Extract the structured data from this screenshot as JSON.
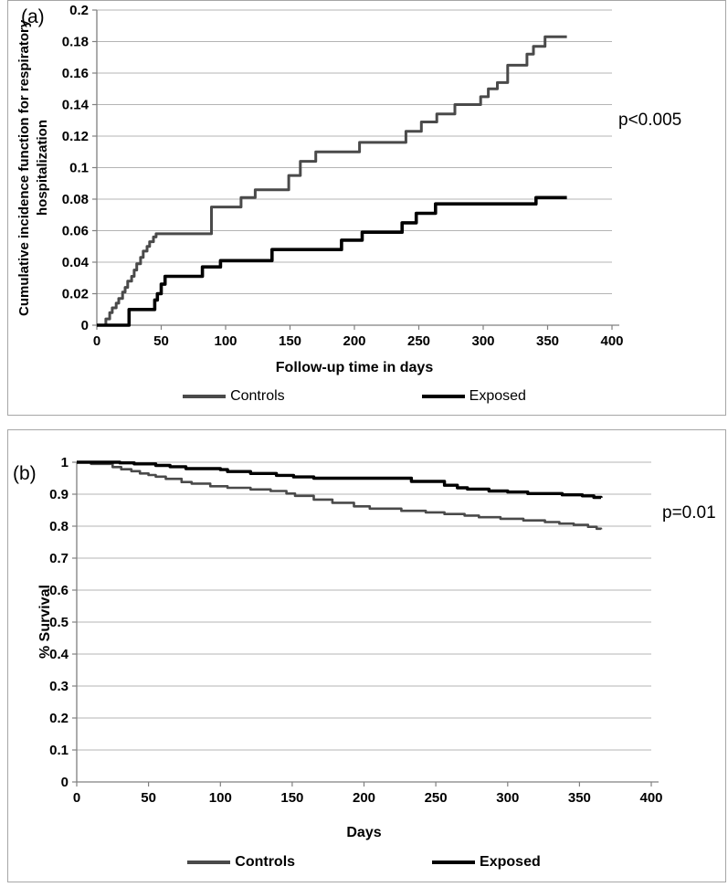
{
  "figure": {
    "panels": [
      {
        "label": "(a)",
        "ylabel_line1": "Cumulative incidence function for respiratory",
        "ylabel_line2": "hospitalization"
      },
      {
        "label": "(b)",
        "ylabel_line1": "% Survival"
      }
    ]
  },
  "chart_data": [
    {
      "type": "line",
      "line_style": "step-after",
      "title": "",
      "xlabel": "Follow-up time in days",
      "ylabel": "Cumulative incidence function for respiratory hospitalization",
      "annotation": "p<0.005",
      "xlim": [
        0,
        400
      ],
      "ylim": [
        0,
        0.2
      ],
      "xticks": [
        0,
        50,
        100,
        150,
        200,
        250,
        300,
        350,
        400
      ],
      "ytick_values": [
        0,
        0.02,
        0.04,
        0.06,
        0.08,
        0.1,
        0.12,
        0.14,
        0.16,
        0.18,
        0.2
      ],
      "ytick_labels": [
        "0",
        "0.02",
        "0.04",
        "0.06",
        "0.08",
        "0.1",
        "0.12",
        "0.14",
        "0.16",
        "0.18",
        "0.2"
      ],
      "grid": "horizontal",
      "legend_position": "bottom",
      "series": [
        {
          "name": "Controls",
          "color": "#4a4a4a",
          "stroke_width": 3,
          "points": [
            [
              0,
              0
            ],
            [
              7,
              0.004
            ],
            [
              10,
              0.008
            ],
            [
              12,
              0.011
            ],
            [
              15,
              0.014
            ],
            [
              17,
              0.017
            ],
            [
              20,
              0.021
            ],
            [
              22,
              0.024
            ],
            [
              24,
              0.028
            ],
            [
              27,
              0.031
            ],
            [
              29,
              0.035
            ],
            [
              31,
              0.039
            ],
            [
              34,
              0.043
            ],
            [
              36,
              0.047
            ],
            [
              39,
              0.05
            ],
            [
              41,
              0.053
            ],
            [
              44,
              0.056
            ],
            [
              46,
              0.058
            ],
            [
              89,
              0.075
            ],
            [
              112,
              0.081
            ],
            [
              123,
              0.086
            ],
            [
              149,
              0.095
            ],
            [
              158,
              0.104
            ],
            [
              170,
              0.11
            ],
            [
              204,
              0.116
            ],
            [
              240,
              0.123
            ],
            [
              252,
              0.129
            ],
            [
              264,
              0.134
            ],
            [
              278,
              0.14
            ],
            [
              298,
              0.145
            ],
            [
              304,
              0.15
            ],
            [
              311,
              0.154
            ],
            [
              319,
              0.165
            ],
            [
              334,
              0.172
            ],
            [
              339,
              0.177
            ],
            [
              348,
              0.183
            ],
            [
              365,
              0.183
            ]
          ]
        },
        {
          "name": "Exposed",
          "color": "#000000",
          "stroke_width": 3.6,
          "points": [
            [
              0,
              0
            ],
            [
              25,
              0.01
            ],
            [
              45,
              0.016
            ],
            [
              47,
              0.02
            ],
            [
              50,
              0.026
            ],
            [
              53,
              0.031
            ],
            [
              82,
              0.037
            ],
            [
              96,
              0.041
            ],
            [
              136,
              0.048
            ],
            [
              190,
              0.054
            ],
            [
              206,
              0.059
            ],
            [
              237,
              0.065
            ],
            [
              248,
              0.071
            ],
            [
              263,
              0.077
            ],
            [
              341,
              0.081
            ],
            [
              365,
              0.081
            ]
          ]
        }
      ]
    },
    {
      "type": "line",
      "line_style": "step-after",
      "title": "",
      "xlabel": "Days",
      "ylabel": "% Survival",
      "annotation": "p=0.01",
      "xlim": [
        0,
        400
      ],
      "ylim": [
        0,
        1
      ],
      "xticks": [
        0,
        50,
        100,
        150,
        200,
        250,
        300,
        350,
        400
      ],
      "ytick_values": [
        0,
        0.1,
        0.2,
        0.3,
        0.4,
        0.5,
        0.6,
        0.7,
        0.8,
        0.9,
        1
      ],
      "ytick_labels": [
        "0",
        "0.1",
        "0.2",
        "0.3",
        "0.4",
        "0.5",
        "0.6",
        "0.7",
        "0.8",
        "0.9",
        "1"
      ],
      "grid": "horizontal",
      "legend_position": "bottom",
      "series": [
        {
          "name": "Controls",
          "color": "#4a4a4a",
          "stroke_width": 2.6,
          "points": [
            [
              0,
              1
            ],
            [
              10,
              0.995
            ],
            [
              25,
              0.985
            ],
            [
              31,
              0.978
            ],
            [
              38,
              0.972
            ],
            [
              44,
              0.965
            ],
            [
              50,
              0.96
            ],
            [
              55,
              0.955
            ],
            [
              62,
              0.948
            ],
            [
              73,
              0.938
            ],
            [
              80,
              0.933
            ],
            [
              93,
              0.925
            ],
            [
              105,
              0.92
            ],
            [
              121,
              0.915
            ],
            [
              135,
              0.91
            ],
            [
              146,
              0.902
            ],
            [
              152,
              0.895
            ],
            [
              165,
              0.883
            ],
            [
              178,
              0.873
            ],
            [
              193,
              0.862
            ],
            [
              204,
              0.855
            ],
            [
              226,
              0.848
            ],
            [
              243,
              0.843
            ],
            [
              256,
              0.838
            ],
            [
              270,
              0.833
            ],
            [
              280,
              0.828
            ],
            [
              295,
              0.823
            ],
            [
              311,
              0.818
            ],
            [
              326,
              0.813
            ],
            [
              336,
              0.808
            ],
            [
              346,
              0.804
            ],
            [
              356,
              0.798
            ],
            [
              362,
              0.792
            ],
            [
              365,
              0.79
            ]
          ]
        },
        {
          "name": "Exposed",
          "color": "#000000",
          "stroke_width": 3.4,
          "points": [
            [
              0,
              1
            ],
            [
              30,
              0.998
            ],
            [
              40,
              0.995
            ],
            [
              55,
              0.99
            ],
            [
              65,
              0.986
            ],
            [
              76,
              0.98
            ],
            [
              100,
              0.977
            ],
            [
              105,
              0.971
            ],
            [
              121,
              0.965
            ],
            [
              139,
              0.959
            ],
            [
              151,
              0.954
            ],
            [
              165,
              0.95
            ],
            [
              233,
              0.94
            ],
            [
              256,
              0.928
            ],
            [
              265,
              0.92
            ],
            [
              272,
              0.916
            ],
            [
              287,
              0.91
            ],
            [
              300,
              0.907
            ],
            [
              314,
              0.902
            ],
            [
              338,
              0.898
            ],
            [
              352,
              0.895
            ],
            [
              360,
              0.89
            ],
            [
              365,
              0.889
            ]
          ]
        }
      ]
    }
  ]
}
